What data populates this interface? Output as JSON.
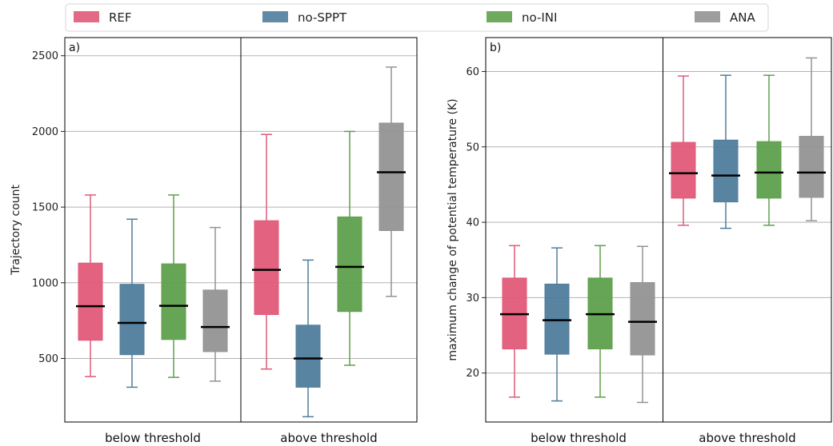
{
  "legend": [
    {
      "name": "REF",
      "color": "#e05a78"
    },
    {
      "name": "no-SPPT",
      "color": "#4f7d9c"
    },
    {
      "name": "no-INI",
      "color": "#5ea04c"
    },
    {
      "name": "ANA",
      "color": "#939393"
    }
  ],
  "chart_data": [
    {
      "type": "box",
      "panel_label": "a)",
      "ylabel": "Trajectory count",
      "ylim": [
        80,
        2620
      ],
      "yticks": [
        500,
        1000,
        1500,
        2000,
        2500
      ],
      "grid": "y",
      "groups": [
        "below threshold",
        "above threshold"
      ],
      "series": [
        {
          "name": "REF",
          "boxes": [
            {
              "whisker_low": 380,
              "q1": 620,
              "median": 845,
              "q3": 1130,
              "whisker_high": 1580
            },
            {
              "whisker_low": 430,
              "q1": 790,
              "median": 1085,
              "q3": 1410,
              "whisker_high": 1980
            }
          ]
        },
        {
          "name": "no-SPPT",
          "boxes": [
            {
              "whisker_low": 310,
              "q1": 525,
              "median": 735,
              "q3": 990,
              "whisker_high": 1420
            },
            {
              "whisker_low": 115,
              "q1": 310,
              "median": 500,
              "q3": 720,
              "whisker_high": 1150
            }
          ]
        },
        {
          "name": "no-INI",
          "boxes": [
            {
              "whisker_low": 375,
              "q1": 625,
              "median": 848,
              "q3": 1125,
              "whisker_high": 1580
            },
            {
              "whisker_low": 455,
              "q1": 810,
              "median": 1105,
              "q3": 1435,
              "whisker_high": 2000
            }
          ]
        },
        {
          "name": "ANA",
          "boxes": [
            {
              "whisker_low": 350,
              "q1": 545,
              "median": 708,
              "q3": 952,
              "whisker_high": 1365
            },
            {
              "whisker_low": 910,
              "q1": 1345,
              "median": 1730,
              "q3": 2055,
              "whisker_high": 2425
            }
          ]
        }
      ]
    },
    {
      "type": "box",
      "panel_label": "b)",
      "ylabel": "maximum change of potential temperature (K)",
      "ylim": [
        13.5,
        64.5
      ],
      "yticks": [
        20,
        30,
        40,
        50,
        60
      ],
      "grid": "y",
      "groups": [
        "below threshold",
        "above threshold"
      ],
      "series": [
        {
          "name": "REF",
          "boxes": [
            {
              "whisker_low": 16.8,
              "q1": 23.2,
              "median": 27.8,
              "q3": 32.6,
              "whisker_high": 36.9
            },
            {
              "whisker_low": 39.6,
              "q1": 43.2,
              "median": 46.5,
              "q3": 50.6,
              "whisker_high": 59.4
            }
          ]
        },
        {
          "name": "no-SPPT",
          "boxes": [
            {
              "whisker_low": 16.3,
              "q1": 22.5,
              "median": 27.0,
              "q3": 31.8,
              "whisker_high": 36.6
            },
            {
              "whisker_low": 39.2,
              "q1": 42.7,
              "median": 46.2,
              "q3": 50.9,
              "whisker_high": 59.5
            }
          ]
        },
        {
          "name": "no-INI",
          "boxes": [
            {
              "whisker_low": 16.8,
              "q1": 23.2,
              "median": 27.8,
              "q3": 32.6,
              "whisker_high": 36.9
            },
            {
              "whisker_low": 39.6,
              "q1": 43.2,
              "median": 46.6,
              "q3": 50.7,
              "whisker_high": 59.5
            }
          ]
        },
        {
          "name": "ANA",
          "boxes": [
            {
              "whisker_low": 16.1,
              "q1": 22.4,
              "median": 26.8,
              "q3": 32.0,
              "whisker_high": 36.8
            },
            {
              "whisker_low": 40.2,
              "q1": 43.3,
              "median": 46.6,
              "q3": 51.4,
              "whisker_high": 61.8
            }
          ]
        }
      ]
    }
  ]
}
